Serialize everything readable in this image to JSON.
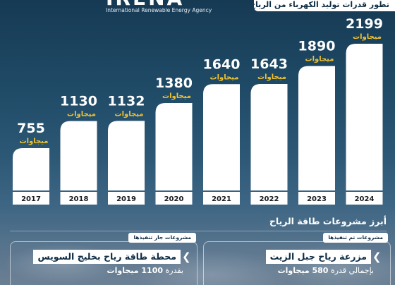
{
  "header": {
    "title": "تطور قدرات توليد الكهرباء من الرياح",
    "logo_text": "IRENA",
    "logo_subtitle": "International Renewable Energy Agency"
  },
  "chart_data": {
    "type": "bar",
    "categories": [
      "2017",
      "2018",
      "2019",
      "2020",
      "2021",
      "2022",
      "2023",
      "2024"
    ],
    "values": [
      755,
      1130,
      1132,
      1380,
      1640,
      1643,
      1890,
      2199
    ],
    "unit_label": "ميجاوات",
    "bar_color": "#ffffff",
    "label_color": "#ffffff",
    "unit_color": "#f2c230",
    "ylim": [
      0,
      2199
    ]
  },
  "projects": {
    "section_title": "أبرز مشروعات طاقة الرياح",
    "completed": {
      "tag": "مشروعات تم تنفيذها",
      "name": "مزرعة رياح جبل الزيت",
      "capacity_prefix": "بإجمالي قدرة",
      "capacity_value": "580 ميجاوات"
    },
    "ongoing": {
      "tag": "مشروعات جار تنفيذها",
      "name": "محطة طاقة رياح بخليج السويس",
      "capacity_prefix": "بقدرة",
      "capacity_value": "1100 ميجاوات"
    }
  }
}
